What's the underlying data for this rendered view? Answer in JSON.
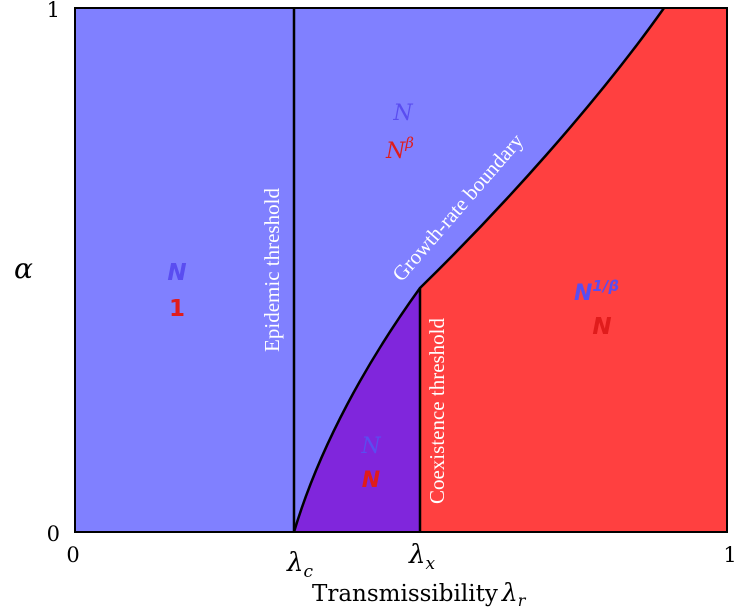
{
  "diagram": {
    "axes": {
      "y_symbol": "α",
      "y_min": "0",
      "y_max": "1",
      "x_min": "0",
      "x_max": "1",
      "x_label_text": "Transmissibility",
      "x_label_symbol": "λ",
      "x_label_sub": "r",
      "x_tick_c_symbol": "λ",
      "x_tick_c_sub": "c",
      "x_tick_x_symbol": "λ",
      "x_tick_x_sub": "x"
    },
    "boundaries": {
      "epidemic": "Epidemic threshold",
      "growth_rate": "Growth-rate boundary",
      "coexistence": "Coexistence threshold"
    },
    "regions": {
      "left": {
        "top": "N",
        "bottom": "1"
      },
      "upper_middle": {
        "top": "N",
        "bottom_base": "N",
        "bottom_exp": "β"
      },
      "lower_middle": {
        "top": "N",
        "bottom": "N"
      },
      "right": {
        "top_base": "N",
        "top_exp": "1/β",
        "bottom": "N"
      }
    },
    "colors": {
      "light_blue": "#8080ff",
      "purple": "#8026dc",
      "red": "#ff4040",
      "label_blue": "#5a4df0",
      "label_red": "#e01c1c"
    }
  }
}
